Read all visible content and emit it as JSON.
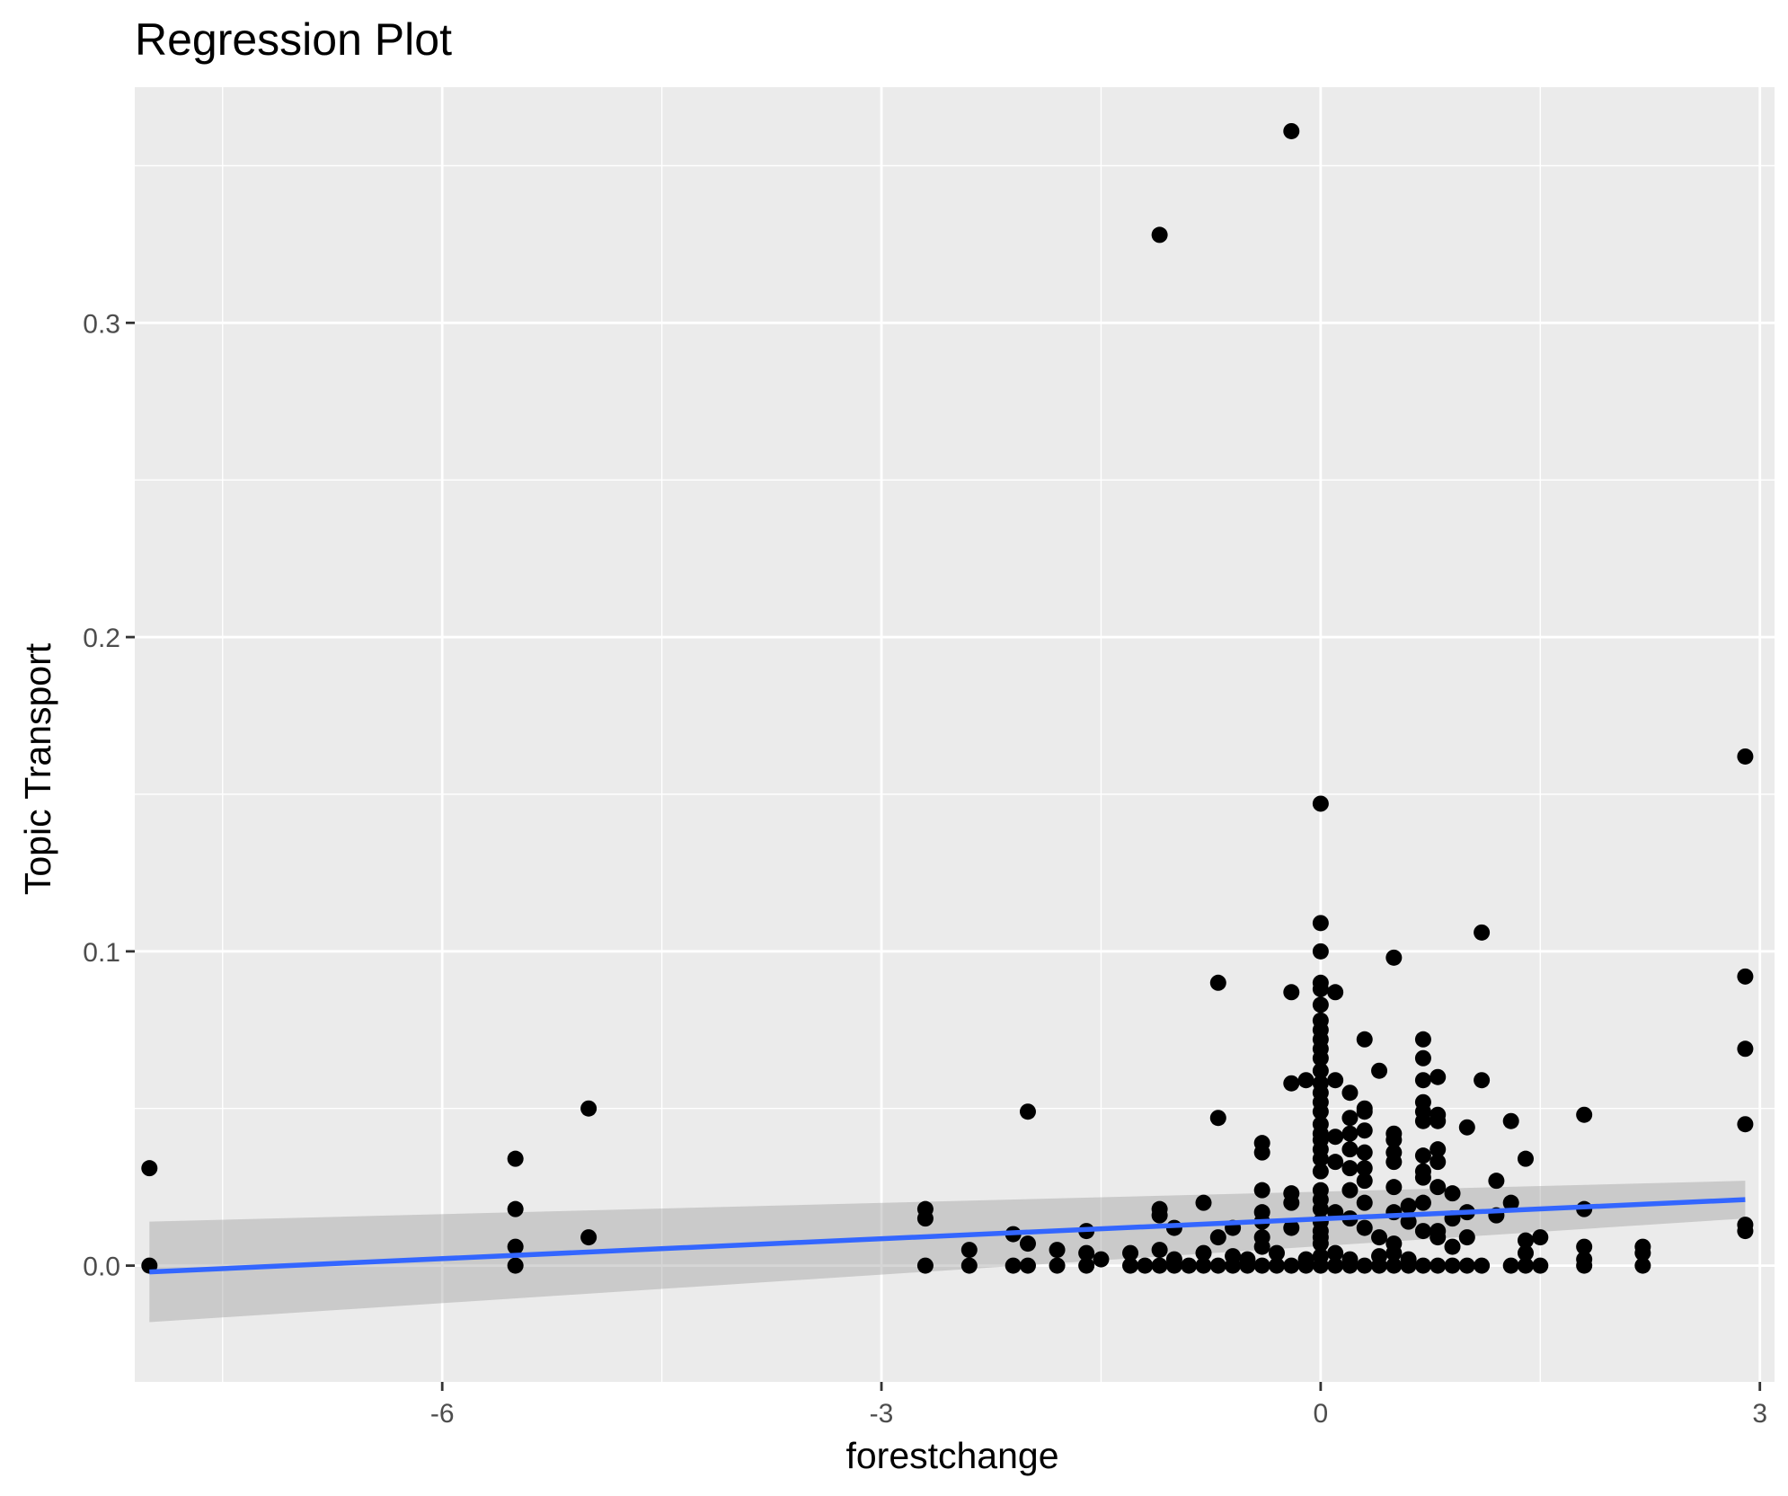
{
  "chart_data": {
    "type": "scatter",
    "title": "Regression Plot",
    "xlabel": "forestchange",
    "ylabel": "Topic Transport",
    "xlim": [
      -8.1,
      3.1
    ],
    "ylim": [
      -0.037,
      0.375
    ],
    "x_ticks": [
      -6,
      -3,
      0,
      3
    ],
    "x_tick_labels": [
      "-6",
      "-3",
      "0",
      "3"
    ],
    "y_ticks": [
      0.0,
      0.1,
      0.2,
      0.3
    ],
    "y_tick_labels": [
      "0.0",
      "0.1",
      "0.2",
      "0.3"
    ],
    "x_minor": [
      -7.5,
      -4.5,
      -1.5,
      1.5
    ],
    "y_minor": [
      0.05,
      0.15,
      0.25,
      0.35
    ],
    "grid": true,
    "legend": "none",
    "colors": {
      "panel": "#ebebeb",
      "grid": "#ffffff",
      "points": "#000000",
      "fit_line": "#3366ff",
      "confidence_band": "#999999"
    },
    "regression": {
      "x": [
        -8.0,
        2.9
      ],
      "y": [
        -0.002,
        0.021
      ],
      "ci_lower": [
        -0.018,
        0.015
      ],
      "ci_upper": [
        0.014,
        0.027
      ]
    },
    "points": [
      [
        -0.2,
        0.361
      ],
      [
        -1.1,
        0.328
      ],
      [
        2.9,
        0.162
      ],
      [
        0.0,
        0.147
      ],
      [
        0.0,
        0.109
      ],
      [
        1.1,
        0.106
      ],
      [
        0.0,
        0.1
      ],
      [
        0.5,
        0.098
      ],
      [
        2.9,
        0.092
      ],
      [
        -0.7,
        0.09
      ],
      [
        0.0,
        0.09
      ],
      [
        0.0,
        0.088
      ],
      [
        -0.2,
        0.087
      ],
      [
        0.1,
        0.087
      ],
      [
        0.0,
        0.083
      ],
      [
        0.0,
        0.078
      ],
      [
        0.0,
        0.075
      ],
      [
        0.0,
        0.072
      ],
      [
        0.3,
        0.072
      ],
      [
        0.7,
        0.072
      ],
      [
        0.0,
        0.069
      ],
      [
        2.9,
        0.069
      ],
      [
        0.0,
        0.066
      ],
      [
        0.7,
        0.066
      ],
      [
        0.4,
        0.062
      ],
      [
        0.0,
        0.062
      ],
      [
        -0.2,
        0.058
      ],
      [
        -0.1,
        0.059
      ],
      [
        0.0,
        0.058
      ],
      [
        0.1,
        0.059
      ],
      [
        0.7,
        0.059
      ],
      [
        0.8,
        0.06
      ],
      [
        1.1,
        0.059
      ],
      [
        0.0,
        0.055
      ],
      [
        0.2,
        0.055
      ],
      [
        0.3,
        0.05
      ],
      [
        0.0,
        0.052
      ],
      [
        0.7,
        0.052
      ],
      [
        -5.0,
        0.05
      ],
      [
        -2.0,
        0.049
      ],
      [
        0.0,
        0.049
      ],
      [
        0.3,
        0.049
      ],
      [
        0.7,
        0.049
      ],
      [
        0.8,
        0.048
      ],
      [
        1.8,
        0.048
      ],
      [
        -0.7,
        0.047
      ],
      [
        0.2,
        0.047
      ],
      [
        0.7,
        0.046
      ],
      [
        0.8,
        0.046
      ],
      [
        1.3,
        0.046
      ],
      [
        2.9,
        0.045
      ],
      [
        0.0,
        0.045
      ],
      [
        1.0,
        0.044
      ],
      [
        0.3,
        0.043
      ],
      [
        0.5,
        0.042
      ],
      [
        -0.4,
        0.039
      ],
      [
        0.0,
        0.042
      ],
      [
        0.2,
        0.042
      ],
      [
        0.0,
        0.04
      ],
      [
        0.1,
        0.041
      ],
      [
        0.5,
        0.04
      ],
      [
        -0.4,
        0.036
      ],
      [
        0.0,
        0.037
      ],
      [
        0.2,
        0.037
      ],
      [
        0.3,
        0.036
      ],
      [
        0.8,
        0.037
      ],
      [
        -5.5,
        0.034
      ],
      [
        0.0,
        0.034
      ],
      [
        0.5,
        0.036
      ],
      [
        0.7,
        0.035
      ],
      [
        1.4,
        0.034
      ],
      [
        0.1,
        0.033
      ],
      [
        0.5,
        0.033
      ],
      [
        0.8,
        0.033
      ],
      [
        -8.0,
        0.031
      ],
      [
        0.0,
        0.03
      ],
      [
        0.2,
        0.031
      ],
      [
        0.3,
        0.031
      ],
      [
        0.7,
        0.03
      ],
      [
        0.3,
        0.027
      ],
      [
        0.7,
        0.028
      ],
      [
        1.2,
        0.027
      ],
      [
        -0.4,
        0.024
      ],
      [
        -0.2,
        0.023
      ],
      [
        0.0,
        0.024
      ],
      [
        0.2,
        0.024
      ],
      [
        0.5,
        0.025
      ],
      [
        0.8,
        0.025
      ],
      [
        0.9,
        0.023
      ],
      [
        0.0,
        0.021
      ],
      [
        -0.8,
        0.02
      ],
      [
        -0.2,
        0.02
      ],
      [
        0.0,
        0.018
      ],
      [
        0.3,
        0.02
      ],
      [
        0.6,
        0.019
      ],
      [
        0.7,
        0.02
      ],
      [
        1.3,
        0.02
      ],
      [
        1.8,
        0.018
      ],
      [
        -5.5,
        0.018
      ],
      [
        -2.7,
        0.018
      ],
      [
        -1.1,
        0.018
      ],
      [
        -0.4,
        0.017
      ],
      [
        0.1,
        0.017
      ],
      [
        0.5,
        0.017
      ],
      [
        1.0,
        0.017
      ],
      [
        1.2,
        0.016
      ],
      [
        -2.7,
        0.015
      ],
      [
        -1.1,
        0.016
      ],
      [
        -0.4,
        0.014
      ],
      [
        0.0,
        0.014
      ],
      [
        0.2,
        0.015
      ],
      [
        0.6,
        0.014
      ],
      [
        0.9,
        0.015
      ],
      [
        2.9,
        0.013
      ],
      [
        -1.6,
        0.011
      ],
      [
        -1.0,
        0.012
      ],
      [
        -0.6,
        0.012
      ],
      [
        -0.2,
        0.012
      ],
      [
        0.0,
        0.011
      ],
      [
        0.3,
        0.012
      ],
      [
        0.7,
        0.011
      ],
      [
        0.8,
        0.011
      ],
      [
        2.9,
        0.011
      ],
      [
        -5.0,
        0.009
      ],
      [
        -2.1,
        0.01
      ],
      [
        -0.7,
        0.009
      ],
      [
        -0.4,
        0.009
      ],
      [
        0.0,
        0.009
      ],
      [
        0.4,
        0.009
      ],
      [
        0.8,
        0.009
      ],
      [
        1.0,
        0.009
      ],
      [
        1.5,
        0.009
      ],
      [
        -2.0,
        0.007
      ],
      [
        1.4,
        0.008
      ],
      [
        -0.4,
        0.006
      ],
      [
        0.0,
        0.007
      ],
      [
        0.5,
        0.007
      ],
      [
        0.9,
        0.006
      ],
      [
        1.8,
        0.006
      ],
      [
        2.2,
        0.006
      ],
      [
        -5.5,
        0.006
      ],
      [
        -2.4,
        0.005
      ],
      [
        -1.8,
        0.005
      ],
      [
        -1.6,
        0.004
      ],
      [
        -1.3,
        0.004
      ],
      [
        -1.1,
        0.005
      ],
      [
        -0.8,
        0.004
      ],
      [
        -0.6,
        0.003
      ],
      [
        -0.3,
        0.004
      ],
      [
        0.0,
        0.003
      ],
      [
        0.1,
        0.004
      ],
      [
        0.4,
        0.003
      ],
      [
        0.5,
        0.004
      ],
      [
        1.4,
        0.004
      ],
      [
        2.2,
        0.004
      ],
      [
        -1.5,
        0.002
      ],
      [
        -1.0,
        0.002
      ],
      [
        -0.5,
        0.002
      ],
      [
        -0.1,
        0.002
      ],
      [
        0.2,
        0.002
      ],
      [
        0.6,
        0.002
      ],
      [
        1.8,
        0.002
      ],
      [
        -8.0,
        0.0
      ],
      [
        -5.5,
        0.0
      ],
      [
        -2.7,
        0.0
      ],
      [
        -2.4,
        0.0
      ],
      [
        -2.1,
        0.0
      ],
      [
        -2.0,
        0.0
      ],
      [
        -1.8,
        0.0
      ],
      [
        -1.6,
        0.0
      ],
      [
        -1.3,
        0.0
      ],
      [
        -1.2,
        0.0
      ],
      [
        -1.1,
        0.0
      ],
      [
        -1.0,
        0.0
      ],
      [
        -0.9,
        0.0
      ],
      [
        -0.8,
        0.0
      ],
      [
        -0.7,
        0.0
      ],
      [
        -0.6,
        0.0
      ],
      [
        -0.5,
        0.0
      ],
      [
        -0.4,
        0.0
      ],
      [
        -0.3,
        0.0
      ],
      [
        -0.2,
        0.0
      ],
      [
        -0.1,
        0.0
      ],
      [
        0.0,
        0.0
      ],
      [
        0.1,
        0.0
      ],
      [
        0.2,
        0.0
      ],
      [
        0.3,
        0.0
      ],
      [
        0.4,
        0.0
      ],
      [
        0.5,
        0.0
      ],
      [
        0.6,
        0.0
      ],
      [
        0.7,
        0.0
      ],
      [
        0.8,
        0.0
      ],
      [
        0.9,
        0.0
      ],
      [
        1.0,
        0.0
      ],
      [
        1.1,
        0.0
      ],
      [
        1.3,
        0.0
      ],
      [
        1.4,
        0.0
      ],
      [
        1.5,
        0.0
      ],
      [
        1.8,
        0.0
      ],
      [
        2.2,
        0.0
      ]
    ]
  }
}
